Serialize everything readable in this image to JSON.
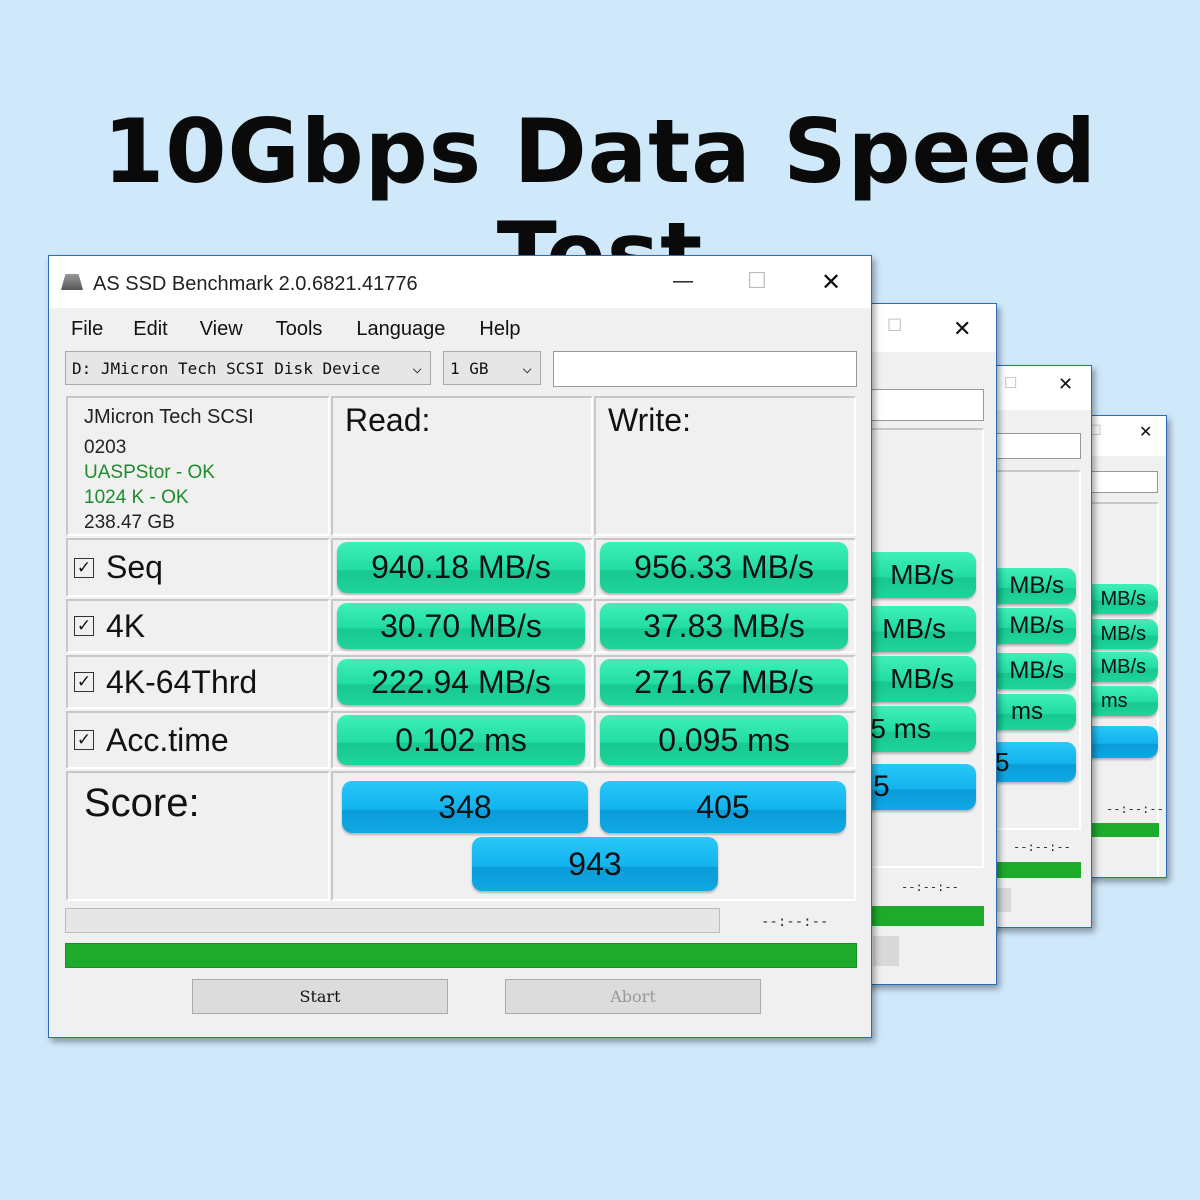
{
  "headline": "10Gbps Data Speed Test",
  "window": {
    "title": "AS SSD Benchmark 2.0.6821.41776",
    "minimize": "—",
    "maximize": "☐",
    "close": "✕",
    "menu": [
      "File",
      "Edit",
      "View",
      "Tools",
      "Language",
      "Help"
    ],
    "drive_select": "D: JMicron Tech SCSI Disk Device",
    "size_select": "1 GB",
    "chevron": "⌵",
    "device": {
      "name": "JMicron Tech SCSI",
      "firmware": "0203",
      "driver": "UASPStor - OK",
      "alignment": "1024 K - OK",
      "capacity": "238.47 GB"
    },
    "status_color_ok": "#1e8c2a",
    "read_header": "Read:",
    "write_header": "Write:",
    "rows": [
      {
        "label": "Seq",
        "checked": true,
        "read": "940.18 MB/s",
        "write": "956.33 MB/s"
      },
      {
        "label": "4K",
        "checked": true,
        "read": "30.70 MB/s",
        "write": "37.83 MB/s"
      },
      {
        "label": "4K-64Thrd",
        "checked": true,
        "read": "222.94 MB/s",
        "write": "271.67 MB/s"
      },
      {
        "label": "Acc.time",
        "checked": true,
        "read": "0.102 ms",
        "write": "0.095 ms"
      }
    ],
    "score_label": "Score:",
    "score_read": "348",
    "score_write": "405",
    "score_total": "943",
    "elapsed": "--:--:--",
    "progress_percent": 100,
    "start": "Start",
    "abort": "Abort",
    "check_mark": "☑"
  },
  "back_windows": [
    {
      "max": "☐",
      "close": "✕",
      "cells": [
        "MB/s",
        "MB/s",
        "MB/s",
        "5 ms"
      ],
      "score": "5",
      "elapsed": "--:--:--"
    },
    {
      "max": "☐",
      "close": "✕",
      "cells": [
        "MB/s",
        "MB/s",
        "MB/s",
        "ms"
      ],
      "score": "5",
      "elapsed": "--:--:--"
    },
    {
      "max": "☐",
      "close": "✕",
      "cells": [
        "MB/s",
        "MB/s",
        "MB/s",
        "ms"
      ],
      "score": "",
      "elapsed": "--:--:--"
    }
  ],
  "colors": {
    "background": "#cfe8fa",
    "result_green": "#22dca2",
    "score_blue": "#12b2ee",
    "progress_green": "#1eab2c"
  }
}
